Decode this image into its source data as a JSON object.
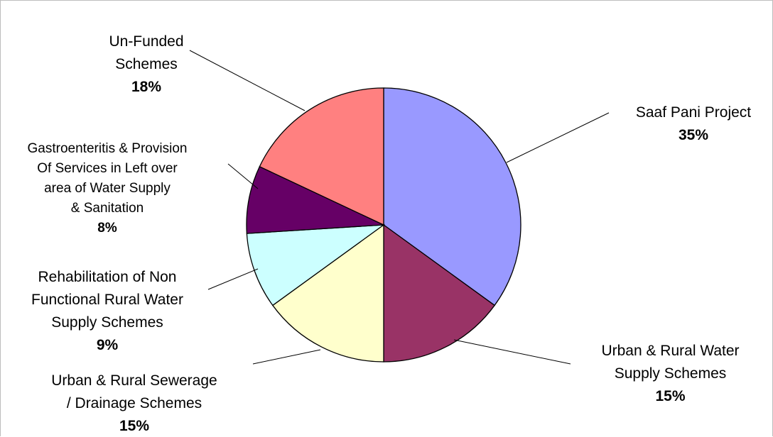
{
  "chart_data": {
    "type": "pie",
    "slices": [
      {
        "label_lines": [
          "Saaf Pani Project"
        ],
        "percent": "35%",
        "value": 35,
        "color": "#9999FF"
      },
      {
        "label_lines": [
          "Urban & Rural Water",
          "Supply Schemes"
        ],
        "percent": "15%",
        "value": 15,
        "color": "#993366"
      },
      {
        "label_lines": [
          "Urban & Rural Sewerage",
          "/ Drainage Schemes"
        ],
        "percent": "15%",
        "value": 15,
        "color": "#FFFFCC"
      },
      {
        "label_lines": [
          "Rehabilitation of Non",
          "Functional Rural Water",
          "Supply Schemes"
        ],
        "percent": "9%",
        "value": 9,
        "color": "#CCFFFF"
      },
      {
        "label_lines": [
          "Gastroenteritis & Provision",
          "Of Services in Left over",
          "area of  Water Supply",
          "& Sanitation"
        ],
        "percent": "8%",
        "value": 8,
        "color": "#660066"
      },
      {
        "label_lines": [
          "Un-Funded",
          "Schemes"
        ],
        "percent": "18%",
        "value": 18,
        "color": "#FF8080"
      }
    ]
  }
}
